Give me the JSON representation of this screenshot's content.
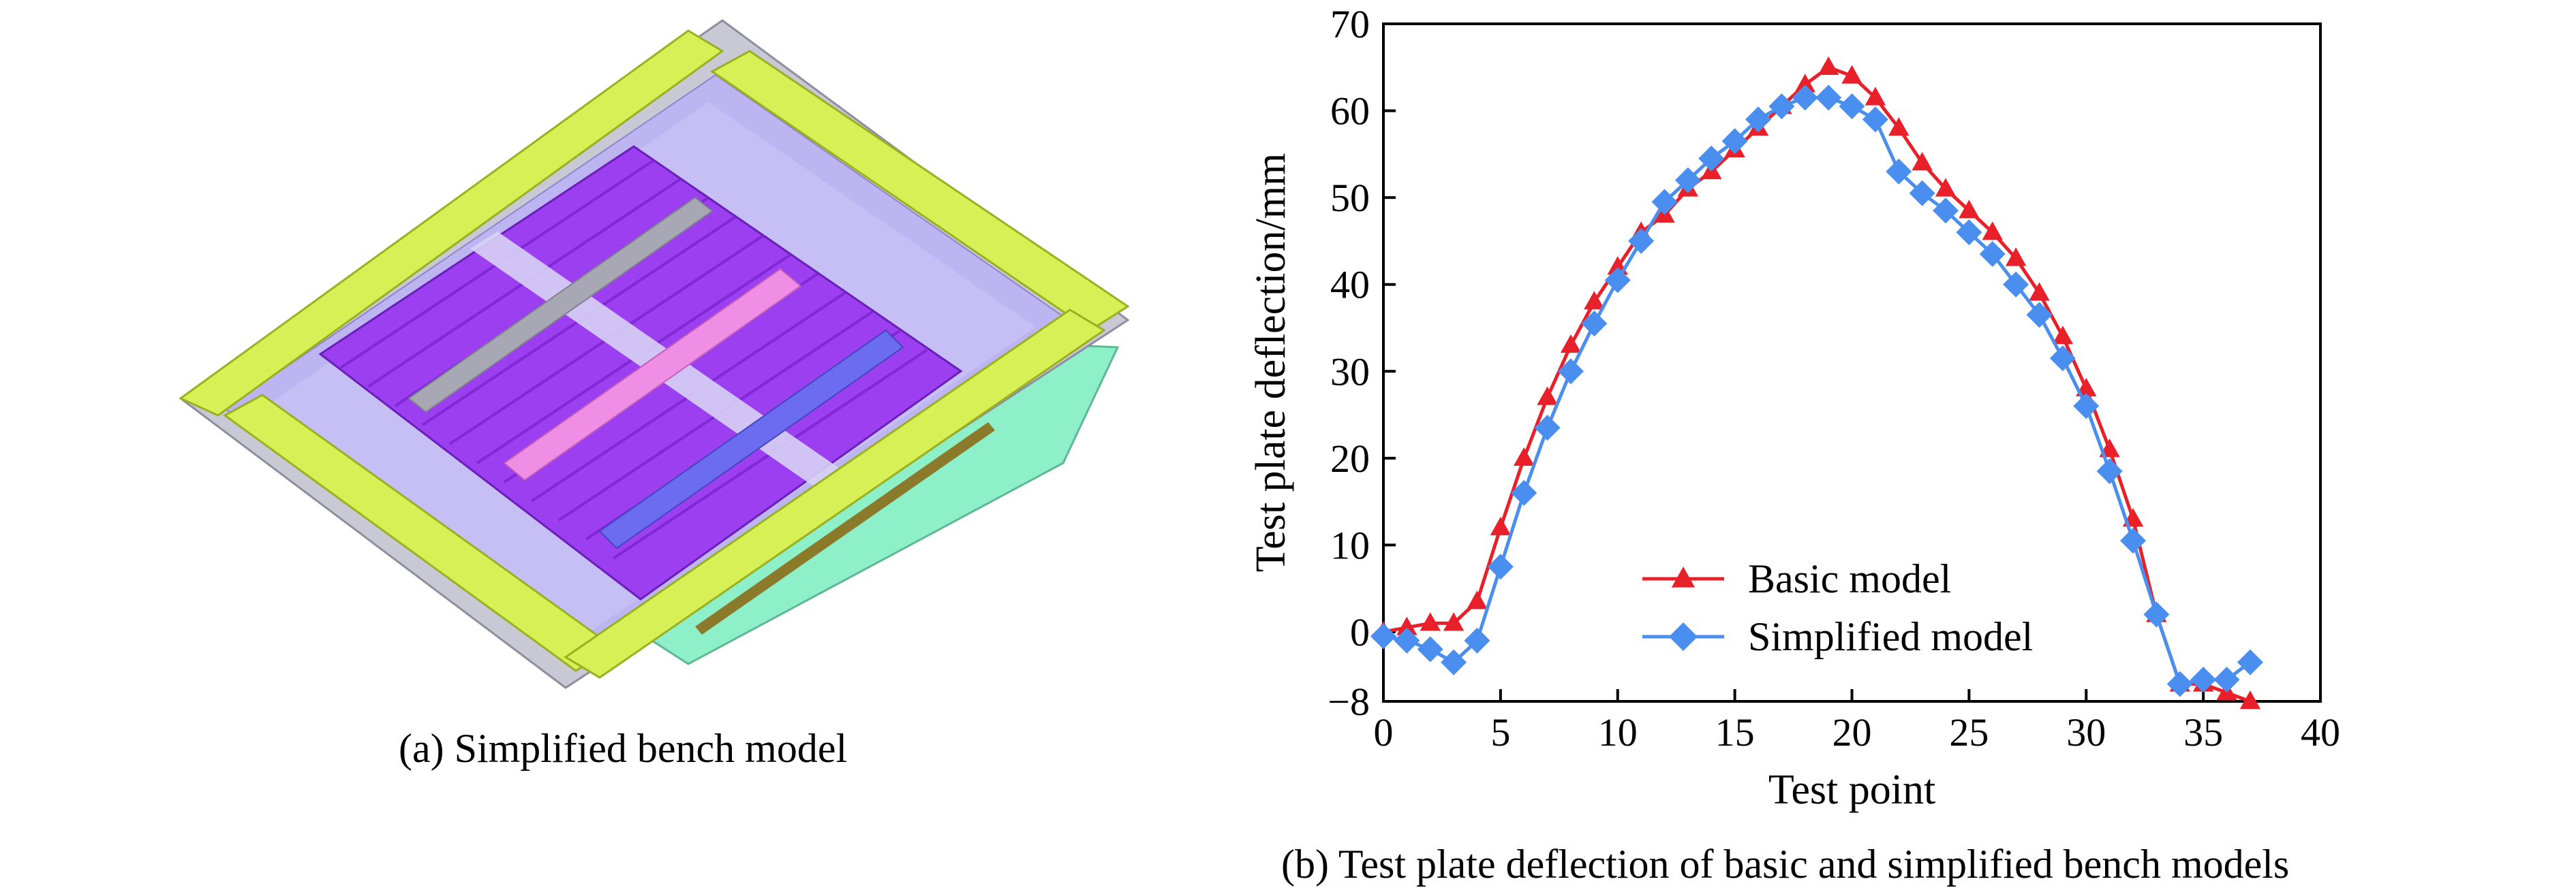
{
  "panel_a": {
    "caption": "(a) Simplified bench model"
  },
  "panel_b": {
    "caption": "(b) Test plate deflection of basic and simplified bench models"
  },
  "chart_data": {
    "type": "line",
    "title": "",
    "xlabel": "Test point",
    "ylabel": "Test plate deflection/mm",
    "xlim": [
      0,
      40
    ],
    "ylim": [
      -8,
      70
    ],
    "xticks": [
      "0",
      "5",
      "10",
      "15",
      "20",
      "25",
      "30",
      "35",
      "40"
    ],
    "yticks": [
      "−8",
      "0",
      "10",
      "20",
      "30",
      "40",
      "50",
      "60",
      "70"
    ],
    "ytick_values": [
      -8,
      0,
      10,
      20,
      30,
      40,
      50,
      60,
      70
    ],
    "xtick_values": [
      0,
      5,
      10,
      15,
      20,
      25,
      30,
      35,
      40
    ],
    "grid": false,
    "legend_position": "lower-center",
    "series": [
      {
        "name": "Basic model",
        "color": "#e8202a",
        "marker": "triangle",
        "x": [
          0,
          1,
          2,
          3,
          4,
          5,
          6,
          7,
          8,
          9,
          10,
          11,
          12,
          13,
          14,
          15,
          16,
          17,
          18,
          19,
          20,
          21,
          22,
          23,
          24,
          25,
          26,
          27,
          28,
          29,
          30,
          31,
          32,
          33,
          34,
          35,
          36,
          37
        ],
        "y": [
          0,
          0.5,
          1,
          1,
          3.5,
          12,
          20,
          27,
          33,
          38,
          42,
          46,
          48,
          51,
          53,
          55.5,
          58,
          60.5,
          63,
          65,
          64,
          61.5,
          58,
          54,
          51,
          48.5,
          46,
          43,
          39,
          34,
          28,
          21,
          13,
          2,
          -6,
          -6,
          -7,
          -8
        ]
      },
      {
        "name": "Simplified model",
        "color": "#4a8ef0",
        "marker": "diamond",
        "x": [
          0,
          1,
          2,
          3,
          4,
          5,
          6,
          7,
          8,
          9,
          10,
          11,
          12,
          13,
          14,
          15,
          16,
          17,
          18,
          19,
          20,
          21,
          22,
          23,
          24,
          25,
          26,
          27,
          28,
          29,
          30,
          31,
          32,
          33,
          34,
          35,
          36,
          37
        ],
        "y": [
          -0.5,
          -1,
          -2,
          -3.5,
          -1,
          7.5,
          16,
          23.5,
          30,
          35.5,
          40.5,
          45,
          49.5,
          52,
          54.5,
          56.5,
          59,
          60.5,
          61.5,
          61.5,
          60.5,
          59,
          53,
          50.5,
          48.5,
          46,
          43.5,
          40,
          36.5,
          31.5,
          26,
          18.5,
          10.5,
          2,
          -6,
          -5.5,
          -5.5,
          -3.5
        ]
      }
    ]
  }
}
